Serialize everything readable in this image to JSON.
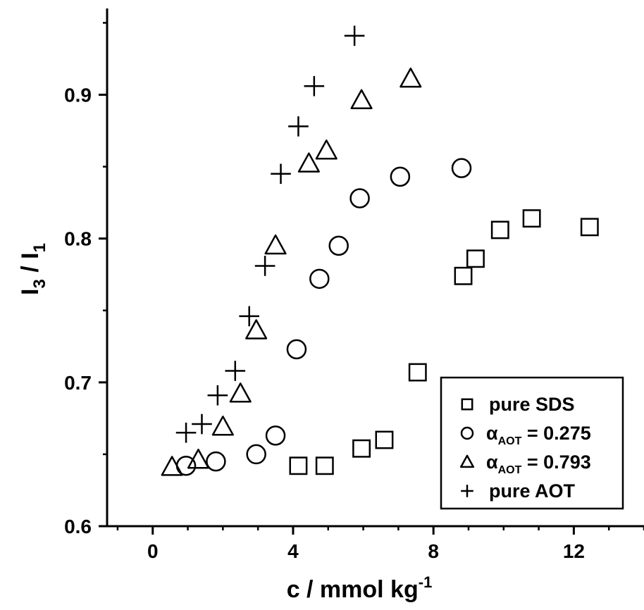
{
  "chart_data": {
    "type": "scatter",
    "title": "",
    "xlabel": {
      "main": "c / mmol kg",
      "sup": "-1"
    },
    "ylabel": {
      "I": "I",
      "sub3": "3",
      "mid": " / I",
      "sub1": "1"
    },
    "xlim": [
      -1.3,
      14
    ],
    "ylim": [
      0.6,
      0.96
    ],
    "xticks": [
      0,
      4,
      8,
      12
    ],
    "xtick_labels": [
      "0",
      "4",
      "8",
      "12"
    ],
    "yticks": [
      0.6,
      0.7,
      0.8,
      0.9
    ],
    "ytick_labels": [
      "0.6",
      "0.7",
      "0.8",
      "0.9"
    ],
    "grid": false,
    "legend_position": "bottom-right",
    "series": [
      {
        "name": "pure SDS",
        "marker": "square",
        "points": [
          [
            4.15,
            0.642
          ],
          [
            4.9,
            0.642
          ],
          [
            5.95,
            0.654
          ],
          [
            6.6,
            0.66
          ],
          [
            7.55,
            0.707
          ],
          [
            8.85,
            0.774
          ],
          [
            9.2,
            0.786
          ],
          [
            9.9,
            0.806
          ],
          [
            10.8,
            0.814
          ],
          [
            12.45,
            0.808
          ]
        ]
      },
      {
        "name": "α_AOT = 0.275",
        "legend": {
          "alpha": "α",
          "sub": "AOT",
          "rest": " = 0.275"
        },
        "marker": "circle",
        "points": [
          [
            0.95,
            0.642
          ],
          [
            1.8,
            0.645
          ],
          [
            2.95,
            0.65
          ],
          [
            3.5,
            0.663
          ],
          [
            4.1,
            0.723
          ],
          [
            4.75,
            0.772
          ],
          [
            5.3,
            0.795
          ],
          [
            5.9,
            0.828
          ],
          [
            7.05,
            0.843
          ],
          [
            8.8,
            0.849
          ]
        ]
      },
      {
        "name": "α_AOT = 0.793",
        "legend": {
          "alpha": "α",
          "sub": "AOT",
          "rest": " = 0.793"
        },
        "marker": "triangle",
        "points": [
          [
            0.55,
            0.641
          ],
          [
            1.3,
            0.646
          ],
          [
            2.0,
            0.669
          ],
          [
            2.5,
            0.692
          ],
          [
            2.95,
            0.736
          ],
          [
            3.5,
            0.795
          ],
          [
            4.45,
            0.852
          ],
          [
            4.95,
            0.861
          ],
          [
            5.95,
            0.896
          ],
          [
            7.35,
            0.911
          ]
        ]
      },
      {
        "name": "pure AOT",
        "marker": "plus",
        "points": [
          [
            0.95,
            0.665
          ],
          [
            1.4,
            0.671
          ],
          [
            1.85,
            0.691
          ],
          [
            2.35,
            0.708
          ],
          [
            2.75,
            0.746
          ],
          [
            3.2,
            0.781
          ],
          [
            3.65,
            0.845
          ],
          [
            4.15,
            0.878
          ],
          [
            4.6,
            0.906
          ],
          [
            5.75,
            0.941
          ]
        ]
      }
    ]
  }
}
